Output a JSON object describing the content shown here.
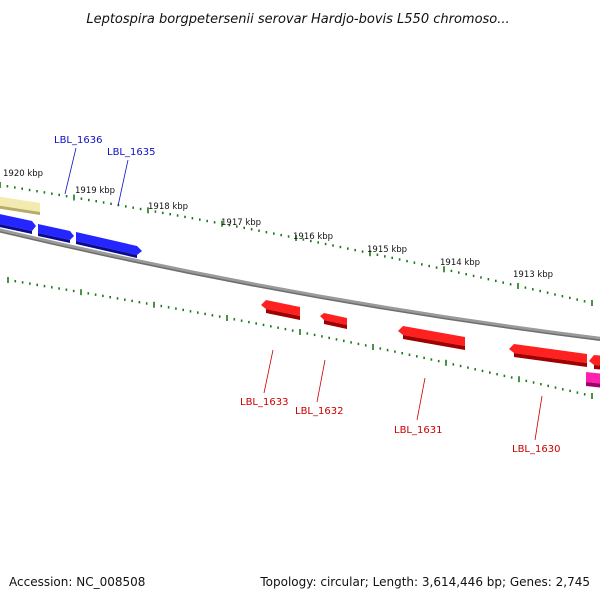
{
  "title": "Leptospira borgpetersenii serovar Hardjo-bovis L550 chromoso...",
  "footer": {
    "accession": "Accession: NC_008508",
    "summary": "Topology: circular; Length: 3,614,446 bp; Genes: 2,745"
  },
  "ticks": [
    "1920 kbp",
    "1919 kbp",
    "1918 kbp",
    "1917 kbp",
    "1916 kbp",
    "1915 kbp",
    "1914 kbp",
    "1913 kbp"
  ],
  "genes": {
    "forward": [
      "LBL_1636",
      "LBL_1635"
    ],
    "reverse": [
      "LBL_1633",
      "LBL_1632",
      "LBL_1631",
      "LBL_1630"
    ]
  },
  "colors": {
    "forward_gene": "#1010e0",
    "reverse_gene": "#e01010",
    "forward_label": "#1010c0",
    "reverse_label": "#cc0000",
    "backbone": "#808080",
    "tick": "#1a7a1a",
    "yellow_feature": "#f0e6a0",
    "magenta_feature": "#e0109a"
  }
}
